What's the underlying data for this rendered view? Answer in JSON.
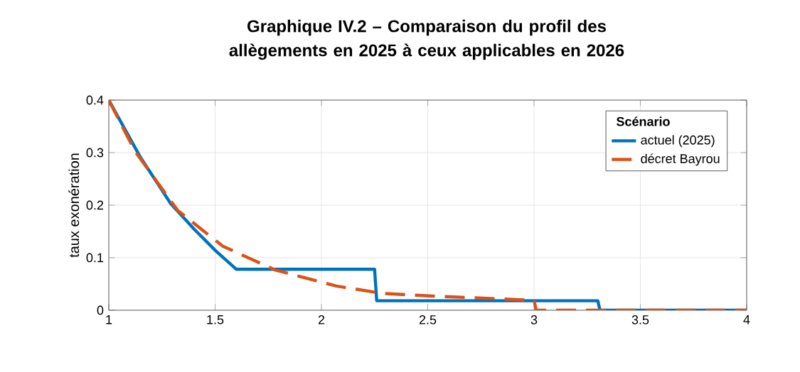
{
  "chart_data": {
    "type": "line",
    "title": "Graphique IV.2 – Comparaison du profil des allègements en 2025 à ceux applicables en 2026",
    "ylabel": "taux exonération",
    "legend_title": "Scénario",
    "xlim": [
      1,
      4
    ],
    "ylim": [
      0,
      0.4
    ],
    "xticks": [
      1,
      1.5,
      2,
      2.5,
      3,
      3.5,
      4
    ],
    "yticks": [
      0,
      0.1,
      0.2,
      0.3,
      0.4
    ],
    "grid": true,
    "legend": "top right",
    "series": [
      {
        "name": "actuel (2025)",
        "color": "#0072bd",
        "line_style": "solid",
        "x": [
          1,
          1.146,
          1.291,
          1.402,
          1.503,
          1.6,
          2.25,
          2.26,
          3.3,
          3.31,
          4
        ],
        "values": [
          0.4,
          0.293,
          0.203,
          0.154,
          0.113,
          0.078,
          0.078,
          0.018,
          0.018,
          0,
          0
        ]
      },
      {
        "name": "décret Bayrou",
        "color": "#d95319",
        "line_style": "dashed",
        "x": [
          1,
          1.124,
          1.324,
          1.536,
          1.78,
          2.07,
          2.29,
          2.52,
          3.0,
          3.01,
          4
        ],
        "values": [
          0.4,
          0.302,
          0.19,
          0.122,
          0.077,
          0.046,
          0.032,
          0.027,
          0.019,
          0,
          0
        ]
      }
    ]
  }
}
